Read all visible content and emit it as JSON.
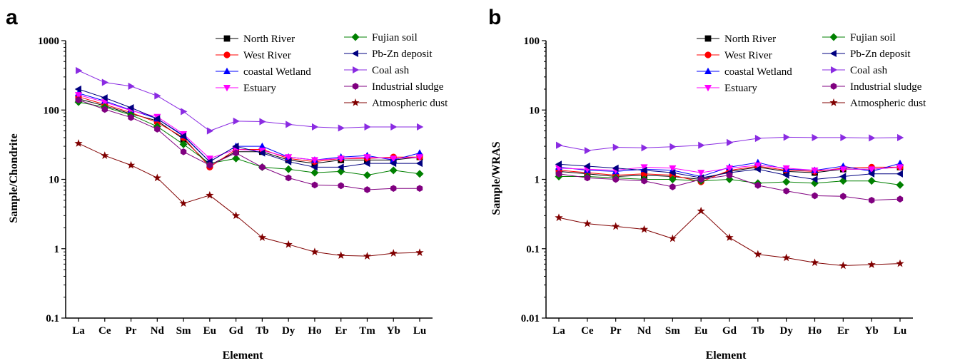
{
  "chart_data": [
    {
      "type": "line",
      "panel_label": "a",
      "xlabel": "Element",
      "ylabel": "Sample/Chondrite",
      "yscale": "log",
      "ylim": [
        0.1,
        1000
      ],
      "yticks": [
        "0.1",
        "1",
        "10",
        "100",
        "1000"
      ],
      "categories": [
        "La",
        "Ce",
        "Pr",
        "Nd",
        "Sm",
        "Eu",
        "Gd",
        "Tb",
        "Dy",
        "Ho",
        "Er",
        "Tm",
        "Yb",
        "Lu"
      ],
      "legend_position": "top-right",
      "series": [
        {
          "name": "North River",
          "color": "#000000",
          "marker": "square",
          "values": [
            145,
            115,
            88,
            70,
            38,
            16,
            25,
            25,
            19,
            17,
            19,
            19,
            19,
            21
          ]
        },
        {
          "name": "West River",
          "color": "#ff0000",
          "marker": "circle",
          "values": [
            155,
            120,
            92,
            66,
            40,
            15,
            27,
            27,
            20,
            18,
            20,
            20,
            21,
            21
          ]
        },
        {
          "name": "coastal Wetland",
          "color": "#0000ff",
          "marker": "triangle-up",
          "values": [
            175,
            135,
            100,
            75,
            43,
            18,
            30,
            30,
            21,
            19,
            21,
            22,
            19,
            24
          ]
        },
        {
          "name": "Estuary",
          "color": "#ff00ff",
          "marker": "triangle-down",
          "values": [
            165,
            130,
            98,
            80,
            45,
            20,
            27,
            26,
            21,
            19,
            20,
            21,
            20,
            21
          ]
        },
        {
          "name": "Fujian soil",
          "color": "#008000",
          "marker": "diamond",
          "values": [
            130,
            110,
            85,
            58,
            32,
            17,
            20,
            15,
            14,
            12.5,
            13,
            11.5,
            13.5,
            12
          ]
        },
        {
          "name": "Pb-Zn deposit",
          "color": "#000080",
          "marker": "triangle-left",
          "values": [
            200,
            150,
            108,
            75,
            42,
            18,
            30,
            24,
            18,
            15,
            15,
            17,
            17,
            17
          ]
        },
        {
          "name": "Coal ash",
          "color": "#8a2be2",
          "marker": "triangle-right",
          "values": [
            370,
            250,
            220,
            160,
            95,
            50,
            69,
            68,
            62,
            57,
            55,
            57,
            57,
            57
          ]
        },
        {
          "name": "Industrial sludge",
          "color": "#800080",
          "marker": "hexagon",
          "values": [
            140,
            102,
            78,
            53,
            25,
            16,
            24,
            15,
            10.5,
            8.3,
            8.1,
            7.1,
            7.4,
            7.4
          ]
        },
        {
          "name": "Atmospheric dust",
          "color": "#800000",
          "marker": "star",
          "values": [
            33,
            22,
            16,
            10.5,
            4.5,
            5.9,
            3.0,
            1.45,
            1.15,
            0.9,
            0.8,
            0.78,
            0.86,
            0.88
          ]
        }
      ]
    },
    {
      "type": "line",
      "panel_label": "b",
      "xlabel": "Element",
      "ylabel": "Sample/WRAS",
      "yscale": "log",
      "ylim": [
        0.01,
        100
      ],
      "yticks": [
        "0.01",
        "0.1",
        "1",
        "10",
        "100"
      ],
      "categories": [
        "La",
        "Ce",
        "Pr",
        "Nd",
        "Sm",
        "Eu",
        "Gd",
        "Tb",
        "Dy",
        "Ho",
        "Er",
        "Yb",
        "Lu"
      ],
      "legend_position": "top-right",
      "series": [
        {
          "name": "North River",
          "color": "#000000",
          "marker": "square",
          "values": [
            1.3,
            1.2,
            1.1,
            1.15,
            1.1,
            1.0,
            1.3,
            1.5,
            1.3,
            1.25,
            1.4,
            1.4,
            1.5
          ]
        },
        {
          "name": "West River",
          "color": "#ff0000",
          "marker": "circle",
          "values": [
            1.35,
            1.25,
            1.15,
            1.2,
            1.15,
            0.92,
            1.35,
            1.55,
            1.35,
            1.3,
            1.45,
            1.5,
            1.5
          ]
        },
        {
          "name": "coastal Wetland",
          "color": "#0000ff",
          "marker": "triangle-up",
          "values": [
            1.5,
            1.35,
            1.3,
            1.4,
            1.35,
            1.1,
            1.5,
            1.75,
            1.4,
            1.35,
            1.55,
            1.3,
            1.7
          ]
        },
        {
          "name": "Estuary",
          "color": "#ff00ff",
          "marker": "triangle-down",
          "values": [
            1.45,
            1.4,
            1.35,
            1.5,
            1.45,
            1.25,
            1.45,
            1.6,
            1.45,
            1.35,
            1.4,
            1.4,
            1.5
          ]
        },
        {
          "name": "Fujian soil",
          "color": "#008000",
          "marker": "diamond",
          "values": [
            1.1,
            1.1,
            1.05,
            1.0,
            1.0,
            0.95,
            1.0,
            0.88,
            0.92,
            0.88,
            0.95,
            0.95,
            0.83
          ]
        },
        {
          "name": "Pb-Zn deposit",
          "color": "#000080",
          "marker": "triangle-left",
          "values": [
            1.65,
            1.55,
            1.45,
            1.35,
            1.25,
            1.05,
            1.25,
            1.4,
            1.15,
            1.0,
            1.1,
            1.2,
            1.2
          ]
        },
        {
          "name": "Coal ash",
          "color": "#8a2be2",
          "marker": "triangle-right",
          "values": [
            3.1,
            2.6,
            2.9,
            2.85,
            2.95,
            3.1,
            3.4,
            3.9,
            4.05,
            4.0,
            4.0,
            3.95,
            4.0
          ]
        },
        {
          "name": "Industrial sludge",
          "color": "#800080",
          "marker": "hexagon",
          "values": [
            1.2,
            1.05,
            1.0,
            0.95,
            0.78,
            1.0,
            1.15,
            0.82,
            0.68,
            0.58,
            0.57,
            0.5,
            0.52
          ]
        },
        {
          "name": "Atmospheric dust",
          "color": "#800000",
          "marker": "star",
          "values": [
            0.28,
            0.23,
            0.21,
            0.19,
            0.14,
            0.35,
            0.145,
            0.083,
            0.074,
            0.063,
            0.057,
            0.059,
            0.061
          ]
        }
      ]
    }
  ]
}
